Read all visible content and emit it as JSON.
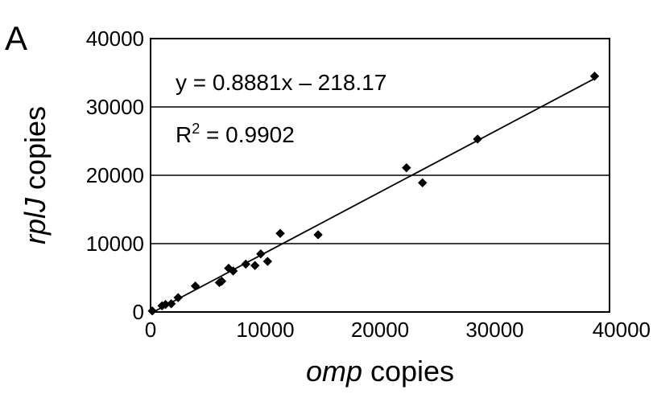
{
  "panel_label": "A",
  "chart_data": {
    "type": "scatter",
    "xlabel_italic": "omp",
    "xlabel_rest": " copies",
    "ylabel_italic": "rplJ",
    "ylabel_rest": " copies",
    "xlim": [
      0,
      40000
    ],
    "ylim": [
      0,
      40000
    ],
    "xticks": [
      0,
      10000,
      20000,
      30000,
      40000
    ],
    "yticks": [
      0,
      10000,
      20000,
      30000,
      40000
    ],
    "x_tick_labels": [
      "0",
      "10000",
      "20000",
      "30000",
      "40000"
    ],
    "y_tick_labels": [
      "0",
      "10000",
      "20000",
      "30000",
      "40000"
    ],
    "grid": "horizontal",
    "trendline": {
      "slope": 0.8881,
      "intercept": -218.17
    },
    "equation_label": "y = 0.8881x – 218.17",
    "r2_label_prefix": "R",
    "r2_label_sup": "2",
    "r2_label_suffix": " = 0.9902",
    "marker_color": "#000000",
    "points": [
      {
        "x": 150,
        "y": 150
      },
      {
        "x": 1000,
        "y": 900
      },
      {
        "x": 1300,
        "y": 1100
      },
      {
        "x": 1800,
        "y": 1200
      },
      {
        "x": 2400,
        "y": 2100
      },
      {
        "x": 3900,
        "y": 3800
      },
      {
        "x": 6000,
        "y": 4300
      },
      {
        "x": 6200,
        "y": 4500
      },
      {
        "x": 6800,
        "y": 6400
      },
      {
        "x": 7200,
        "y": 6000
      },
      {
        "x": 8300,
        "y": 7000
      },
      {
        "x": 9100,
        "y": 6800
      },
      {
        "x": 9600,
        "y": 8500
      },
      {
        "x": 10200,
        "y": 7400
      },
      {
        "x": 11300,
        "y": 11500
      },
      {
        "x": 14600,
        "y": 11300
      },
      {
        "x": 22300,
        "y": 21100
      },
      {
        "x": 23700,
        "y": 18900
      },
      {
        "x": 28500,
        "y": 25300
      },
      {
        "x": 38700,
        "y": 34500
      }
    ]
  }
}
